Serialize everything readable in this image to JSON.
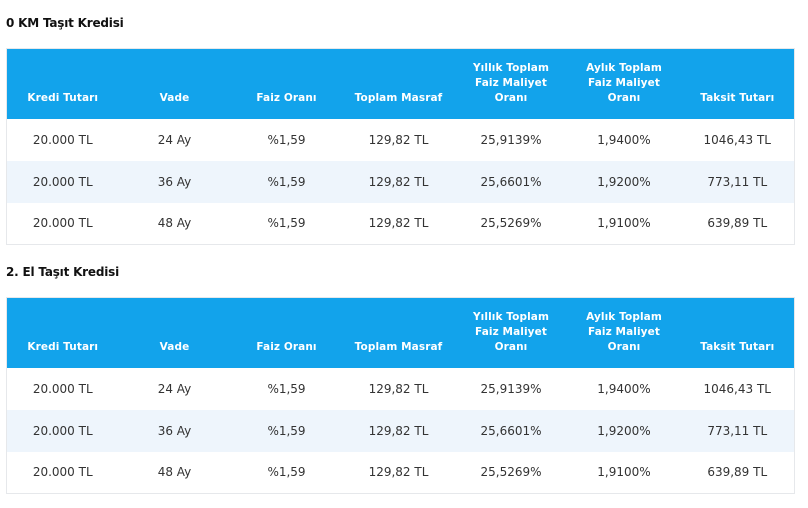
{
  "sections": [
    {
      "title": "0 KM Taşıt Kredisi",
      "headers": [
        "Kredi Tutarı",
        "Vade",
        "Faiz Oranı",
        "Toplam Masraf",
        "Yıllık Toplam\nFaiz Maliyet\nOranı",
        "Aylık Toplam\nFaiz Maliyet\nOranı",
        "Taksit Tutarı"
      ],
      "rows": [
        [
          "20.000 TL",
          "24 Ay",
          "%1,59",
          "129,82 TL",
          "25,9139%",
          "1,9400%",
          "1046,43 TL"
        ],
        [
          "20.000 TL",
          "36 Ay",
          "%1,59",
          "129,82 TL",
          "25,6601%",
          "1,9200%",
          "773,11 TL"
        ],
        [
          "20.000 TL",
          "48 Ay",
          "%1,59",
          "129,82 TL",
          "25,5269%",
          "1,9100%",
          "639,89 TL"
        ]
      ]
    },
    {
      "title": "2. El Taşıt Kredisi",
      "headers": [
        "Kredi Tutarı",
        "Vade",
        "Faiz Oranı",
        "Toplam Masraf",
        "Yıllık Toplam\nFaiz Maliyet\nOranı",
        "Aylık Toplam\nFaiz Maliyet\nOranı",
        "Taksit Tutarı"
      ],
      "rows": [
        [
          "20.000 TL",
          "24 Ay",
          "%1,59",
          "129,82 TL",
          "25,9139%",
          "1,9400%",
          "1046,43 TL"
        ],
        [
          "20.000 TL",
          "36 Ay",
          "%1,59",
          "129,82 TL",
          "25,6601%",
          "1,9200%",
          "773,11 TL"
        ],
        [
          "20.000 TL",
          "48 Ay",
          "%1,59",
          "129,82 TL",
          "25,5269%",
          "1,9100%",
          "639,89 TL"
        ]
      ]
    }
  ],
  "colors": {
    "header_background": "#12a3eb",
    "header_text": "#ffffff",
    "striped_row": "#eef5fc",
    "cell_text": "#333333"
  }
}
